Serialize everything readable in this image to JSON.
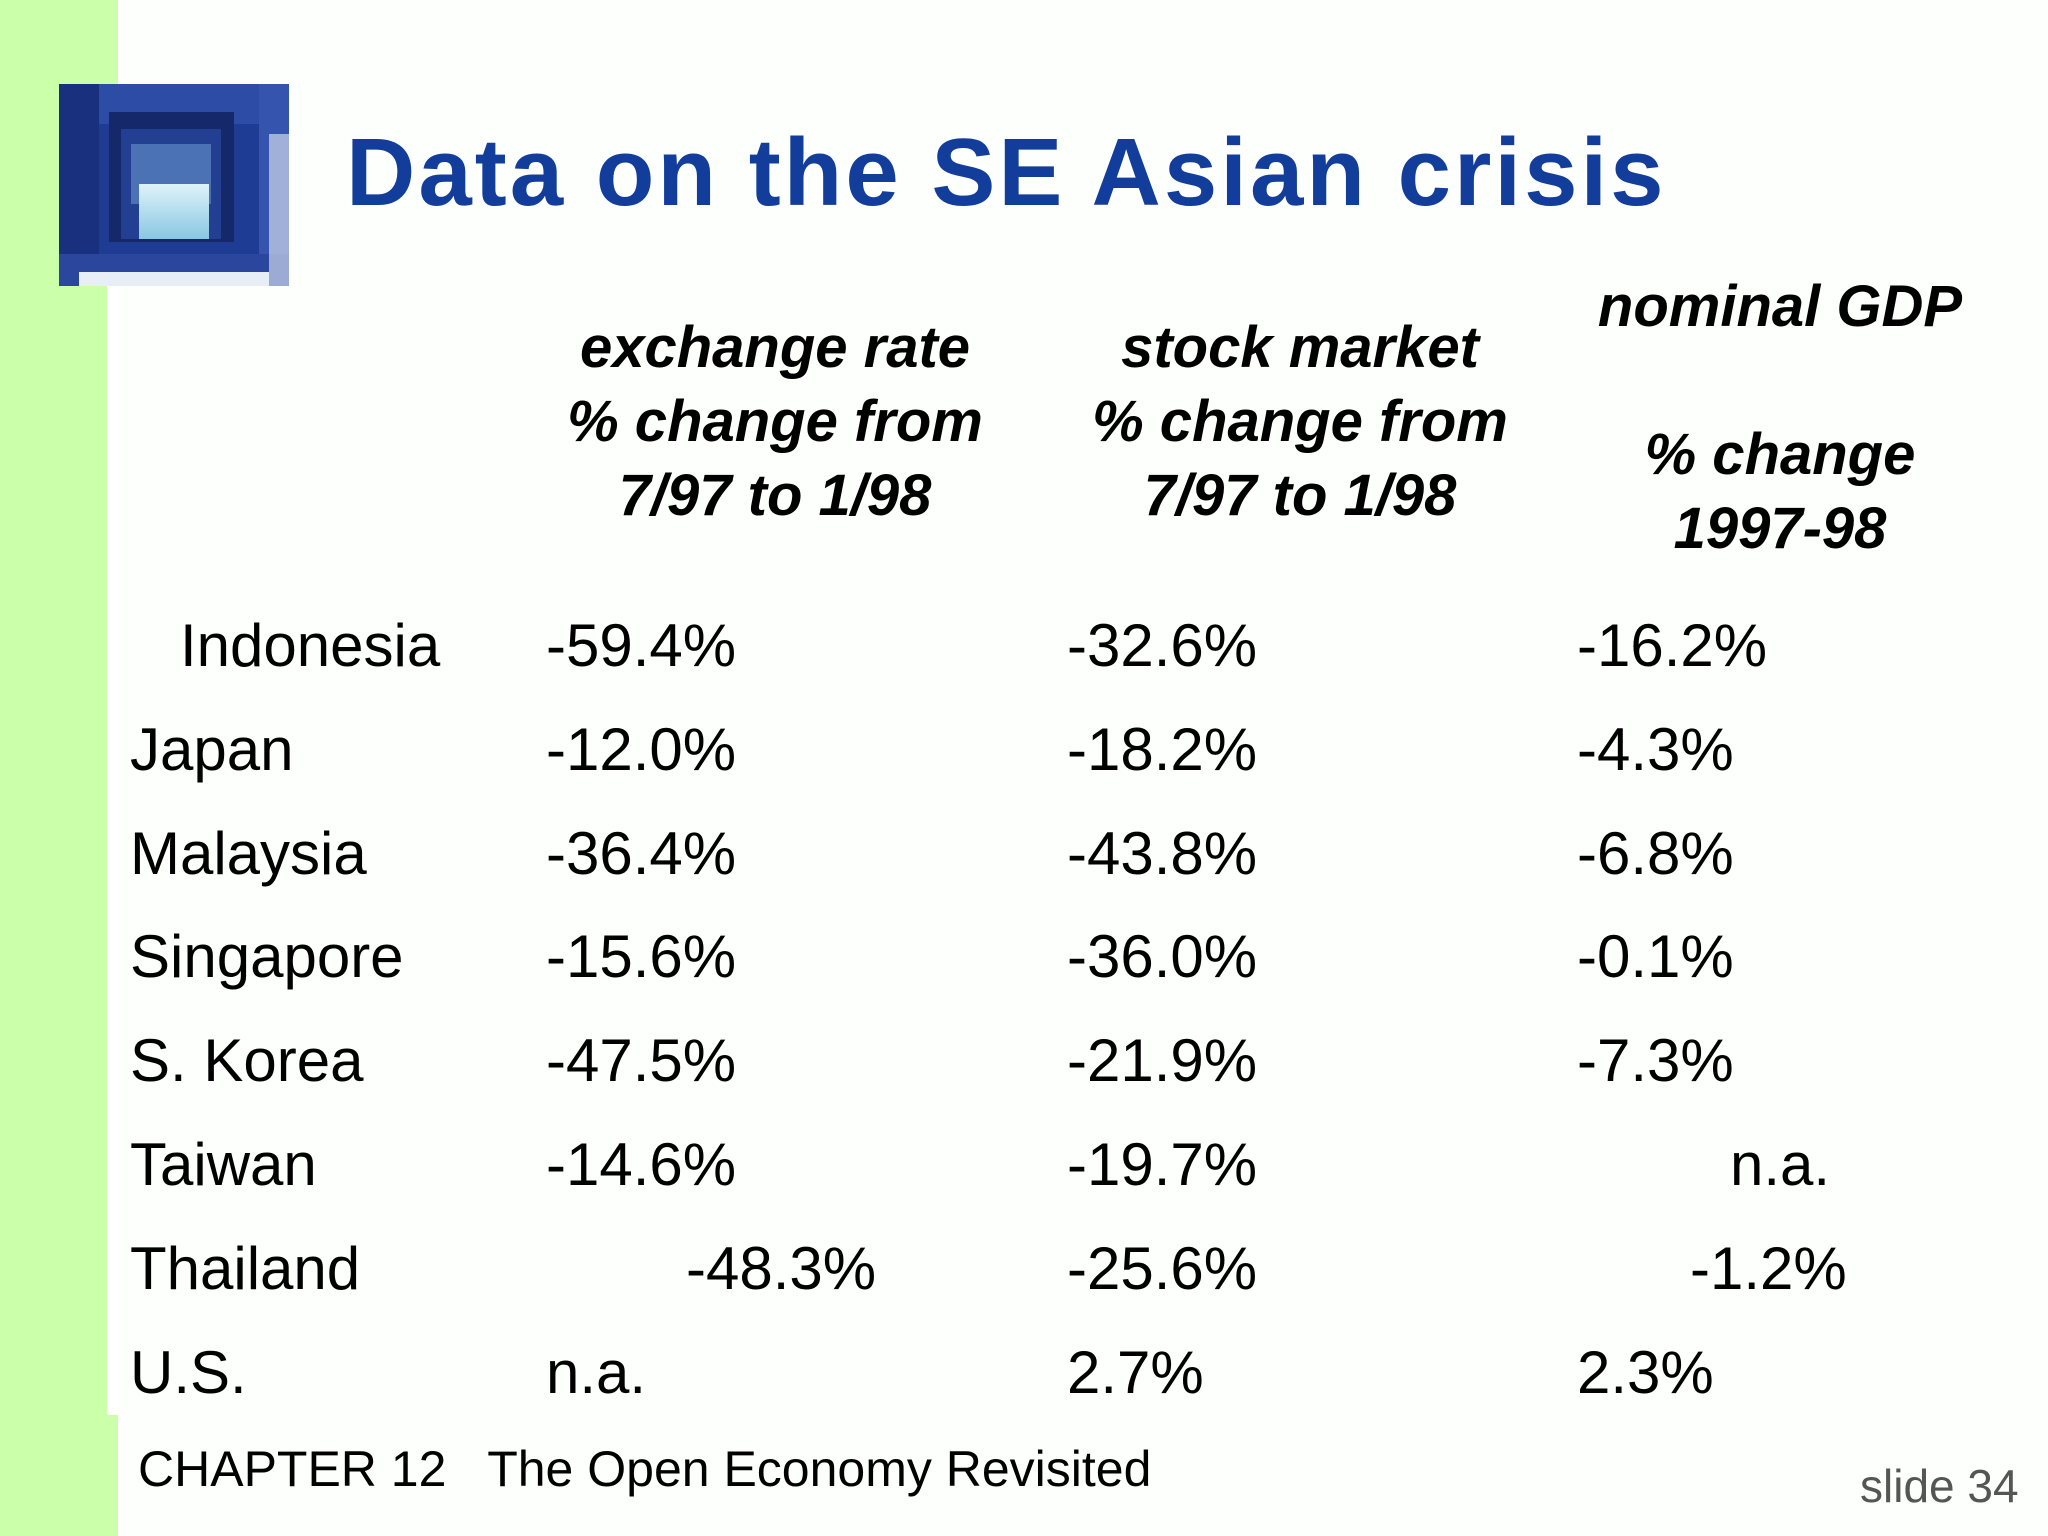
{
  "title": "Data on the SE Asian crisis",
  "headers": {
    "exchange_rate": [
      "exchange rate",
      "% change from",
      "7/97 to 1/98"
    ],
    "stock_market": [
      "stock market",
      "% change from",
      "7/97 to 1/98"
    ],
    "nominal_gdp": [
      "nominal GDP",
      "% change",
      "1997-98"
    ]
  },
  "rows": [
    {
      "country": "Indonesia",
      "exchange_rate": "-59.4%",
      "stock_market": "-32.6%",
      "nominal_gdp": "-16.2%"
    },
    {
      "country": "Japan",
      "exchange_rate": "-12.0%",
      "stock_market": "-18.2%",
      "nominal_gdp": "-4.3%"
    },
    {
      "country": "Malaysia",
      "exchange_rate": "-36.4%",
      "stock_market": "-43.8%",
      "nominal_gdp": "-6.8%"
    },
    {
      "country": "Singapore",
      "exchange_rate": "-15.6%",
      "stock_market": "-36.0%",
      "nominal_gdp": "-0.1%"
    },
    {
      "country": "S. Korea",
      "exchange_rate": "-47.5%",
      "stock_market": "-21.9%",
      "nominal_gdp": "-7.3%"
    },
    {
      "country": "Taiwan",
      "exchange_rate": "-14.6%",
      "stock_market": "-19.7%",
      "nominal_gdp": "n.a."
    },
    {
      "country": "Thailand",
      "exchange_rate": "-48.3%",
      "stock_market": "-25.6%",
      "nominal_gdp": "-1.2%"
    },
    {
      "country": "U.S.",
      "exchange_rate": "n.a.",
      "stock_market": "2.7%",
      "nominal_gdp": "2.3%"
    }
  ],
  "footer": {
    "chapter": "CHAPTER 12   The Open Economy Revisited",
    "slide": "slide 34"
  },
  "colors": {
    "title": "#123d9a",
    "left_bar": "#ccffaa",
    "logo": "#1e3c96"
  },
  "icons": {
    "logo": "blue-window-logo-icon"
  }
}
